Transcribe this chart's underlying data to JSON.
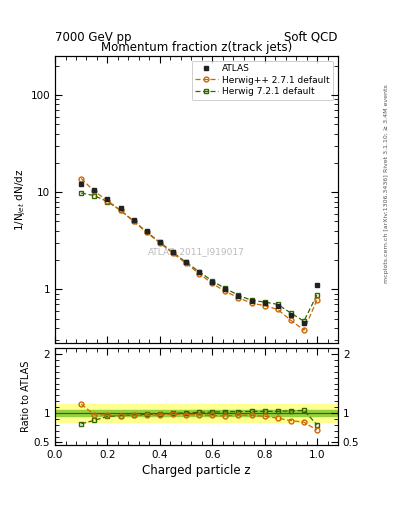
{
  "title_top_left": "7000 GeV pp",
  "title_top_right": "Soft QCD",
  "plot_title": "Momentum fraction z(track jets)",
  "xlabel": "Charged particle z",
  "ylabel_main": "1/N$_{jet}$ dN/dz",
  "ylabel_ratio": "Ratio to ATLAS",
  "watermark": "ATLAS_2011_I919017",
  "right_label_top": "Rivet 3.1.10; ≥ 3.4M events",
  "right_label_bottom": "mcplots.cern.ch [arXiv:1306.3436]",
  "atlas_z": [
    0.1,
    0.15,
    0.2,
    0.25,
    0.3,
    0.35,
    0.4,
    0.45,
    0.5,
    0.55,
    0.6,
    0.65,
    0.7,
    0.75,
    0.8,
    0.85,
    0.9,
    0.95,
    1.0
  ],
  "atlas_y": [
    12.0,
    10.5,
    8.5,
    6.8,
    5.2,
    4.0,
    3.1,
    2.4,
    1.9,
    1.5,
    1.2,
    1.0,
    0.85,
    0.75,
    0.72,
    0.68,
    0.55,
    0.45,
    1.1
  ],
  "herwigpp_z": [
    0.1,
    0.15,
    0.2,
    0.25,
    0.3,
    0.35,
    0.4,
    0.45,
    0.5,
    0.55,
    0.6,
    0.65,
    0.7,
    0.75,
    0.8,
    0.85,
    0.9,
    0.95,
    1.0
  ],
  "herwigpp_y": [
    13.8,
    10.2,
    8.2,
    6.5,
    5.0,
    3.85,
    3.0,
    2.35,
    1.85,
    1.45,
    1.15,
    0.95,
    0.82,
    0.72,
    0.68,
    0.62,
    0.48,
    0.38,
    0.78
  ],
  "herwig7_z": [
    0.1,
    0.15,
    0.2,
    0.25,
    0.3,
    0.35,
    0.4,
    0.45,
    0.5,
    0.55,
    0.6,
    0.65,
    0.7,
    0.75,
    0.8,
    0.85,
    0.9,
    0.95,
    1.0
  ],
  "herwig7_y": [
    9.8,
    9.2,
    8.0,
    6.5,
    5.05,
    3.9,
    3.05,
    2.4,
    1.9,
    1.52,
    1.22,
    1.02,
    0.87,
    0.77,
    0.74,
    0.7,
    0.57,
    0.47,
    0.88
  ],
  "herwigpp_ratio": [
    1.15,
    0.97,
    0.965,
    0.956,
    0.96,
    0.96,
    0.968,
    0.98,
    0.974,
    0.967,
    0.958,
    0.95,
    0.965,
    0.96,
    0.944,
    0.912,
    0.873,
    0.844,
    0.71
  ],
  "herwig7_ratio": [
    0.817,
    0.876,
    0.941,
    0.956,
    0.971,
    0.975,
    0.984,
    1.0,
    1.0,
    1.013,
    1.017,
    1.02,
    1.024,
    1.027,
    1.028,
    1.029,
    1.036,
    1.044,
    0.8
  ],
  "green_band_inner": [
    0.95,
    1.05
  ],
  "yellow_band_outer": [
    0.85,
    1.15
  ],
  "atlas_color": "#222222",
  "herwigpp_color": "#cc6600",
  "herwig7_color": "#336600",
  "atlas_marker": "s",
  "herwigpp_marker": "o",
  "herwig7_marker": "s",
  "ylim_main": [
    0.28,
    250
  ],
  "ylim_ratio": [
    0.45,
    2.1
  ],
  "xlim": [
    0.05,
    1.08
  ],
  "background_color": "#ffffff"
}
